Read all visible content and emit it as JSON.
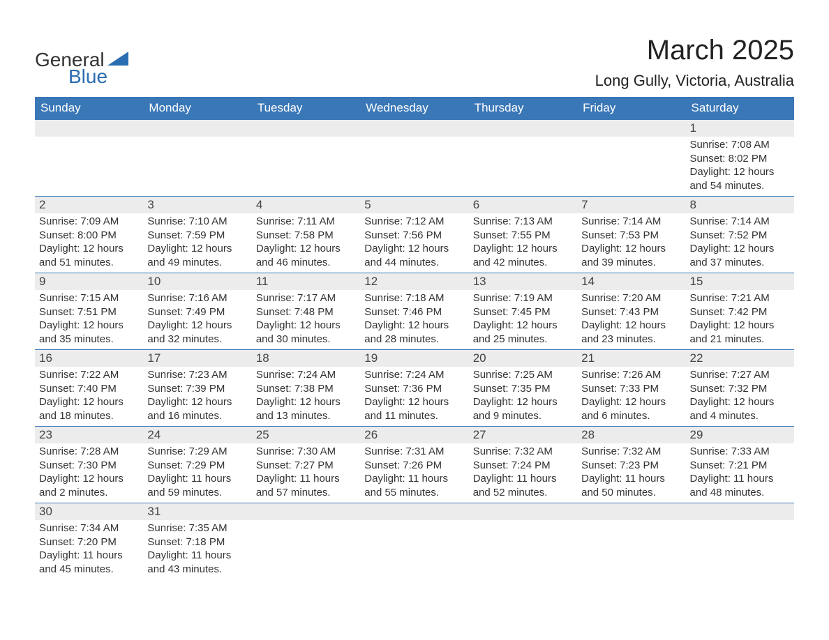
{
  "logo": {
    "text_general": "General",
    "text_blue": "Blue",
    "triangle_color": "#2a6db0"
  },
  "title": "March 2025",
  "location": "Long Gully, Victoria, Australia",
  "colors": {
    "header_bg": "#3a77b7",
    "header_text": "#ffffff",
    "daynum_bg": "#ececec",
    "text": "#333333",
    "accent": "#2a6db0",
    "background": "#ffffff"
  },
  "typography": {
    "title_fontsize": 40,
    "location_fontsize": 22,
    "header_fontsize": 17,
    "daynum_fontsize": 17,
    "content_fontsize": 15
  },
  "calendar": {
    "layout": {
      "rows": 6,
      "cols": 7,
      "start_day_index": 6
    },
    "headers": [
      "Sunday",
      "Monday",
      "Tuesday",
      "Wednesday",
      "Thursday",
      "Friday",
      "Saturday"
    ],
    "days": [
      {
        "n": 1,
        "sunrise": "7:08 AM",
        "sunset": "8:02 PM",
        "daylight": "12 hours and 54 minutes."
      },
      {
        "n": 2,
        "sunrise": "7:09 AM",
        "sunset": "8:00 PM",
        "daylight": "12 hours and 51 minutes."
      },
      {
        "n": 3,
        "sunrise": "7:10 AM",
        "sunset": "7:59 PM",
        "daylight": "12 hours and 49 minutes."
      },
      {
        "n": 4,
        "sunrise": "7:11 AM",
        "sunset": "7:58 PM",
        "daylight": "12 hours and 46 minutes."
      },
      {
        "n": 5,
        "sunrise": "7:12 AM",
        "sunset": "7:56 PM",
        "daylight": "12 hours and 44 minutes."
      },
      {
        "n": 6,
        "sunrise": "7:13 AM",
        "sunset": "7:55 PM",
        "daylight": "12 hours and 42 minutes."
      },
      {
        "n": 7,
        "sunrise": "7:14 AM",
        "sunset": "7:53 PM",
        "daylight": "12 hours and 39 minutes."
      },
      {
        "n": 8,
        "sunrise": "7:14 AM",
        "sunset": "7:52 PM",
        "daylight": "12 hours and 37 minutes."
      },
      {
        "n": 9,
        "sunrise": "7:15 AM",
        "sunset": "7:51 PM",
        "daylight": "12 hours and 35 minutes."
      },
      {
        "n": 10,
        "sunrise": "7:16 AM",
        "sunset": "7:49 PM",
        "daylight": "12 hours and 32 minutes."
      },
      {
        "n": 11,
        "sunrise": "7:17 AM",
        "sunset": "7:48 PM",
        "daylight": "12 hours and 30 minutes."
      },
      {
        "n": 12,
        "sunrise": "7:18 AM",
        "sunset": "7:46 PM",
        "daylight": "12 hours and 28 minutes."
      },
      {
        "n": 13,
        "sunrise": "7:19 AM",
        "sunset": "7:45 PM",
        "daylight": "12 hours and 25 minutes."
      },
      {
        "n": 14,
        "sunrise": "7:20 AM",
        "sunset": "7:43 PM",
        "daylight": "12 hours and 23 minutes."
      },
      {
        "n": 15,
        "sunrise": "7:21 AM",
        "sunset": "7:42 PM",
        "daylight": "12 hours and 21 minutes."
      },
      {
        "n": 16,
        "sunrise": "7:22 AM",
        "sunset": "7:40 PM",
        "daylight": "12 hours and 18 minutes."
      },
      {
        "n": 17,
        "sunrise": "7:23 AM",
        "sunset": "7:39 PM",
        "daylight": "12 hours and 16 minutes."
      },
      {
        "n": 18,
        "sunrise": "7:24 AM",
        "sunset": "7:38 PM",
        "daylight": "12 hours and 13 minutes."
      },
      {
        "n": 19,
        "sunrise": "7:24 AM",
        "sunset": "7:36 PM",
        "daylight": "12 hours and 11 minutes."
      },
      {
        "n": 20,
        "sunrise": "7:25 AM",
        "sunset": "7:35 PM",
        "daylight": "12 hours and 9 minutes."
      },
      {
        "n": 21,
        "sunrise": "7:26 AM",
        "sunset": "7:33 PM",
        "daylight": "12 hours and 6 minutes."
      },
      {
        "n": 22,
        "sunrise": "7:27 AM",
        "sunset": "7:32 PM",
        "daylight": "12 hours and 4 minutes."
      },
      {
        "n": 23,
        "sunrise": "7:28 AM",
        "sunset": "7:30 PM",
        "daylight": "12 hours and 2 minutes."
      },
      {
        "n": 24,
        "sunrise": "7:29 AM",
        "sunset": "7:29 PM",
        "daylight": "11 hours and 59 minutes."
      },
      {
        "n": 25,
        "sunrise": "7:30 AM",
        "sunset": "7:27 PM",
        "daylight": "11 hours and 57 minutes."
      },
      {
        "n": 26,
        "sunrise": "7:31 AM",
        "sunset": "7:26 PM",
        "daylight": "11 hours and 55 minutes."
      },
      {
        "n": 27,
        "sunrise": "7:32 AM",
        "sunset": "7:24 PM",
        "daylight": "11 hours and 52 minutes."
      },
      {
        "n": 28,
        "sunrise": "7:32 AM",
        "sunset": "7:23 PM",
        "daylight": "11 hours and 50 minutes."
      },
      {
        "n": 29,
        "sunrise": "7:33 AM",
        "sunset": "7:21 PM",
        "daylight": "11 hours and 48 minutes."
      },
      {
        "n": 30,
        "sunrise": "7:34 AM",
        "sunset": "7:20 PM",
        "daylight": "11 hours and 45 minutes."
      },
      {
        "n": 31,
        "sunrise": "7:35 AM",
        "sunset": "7:18 PM",
        "daylight": "11 hours and 43 minutes."
      }
    ],
    "labels": {
      "sunrise_prefix": "Sunrise: ",
      "sunset_prefix": "Sunset: ",
      "daylight_prefix": "Daylight: "
    }
  }
}
